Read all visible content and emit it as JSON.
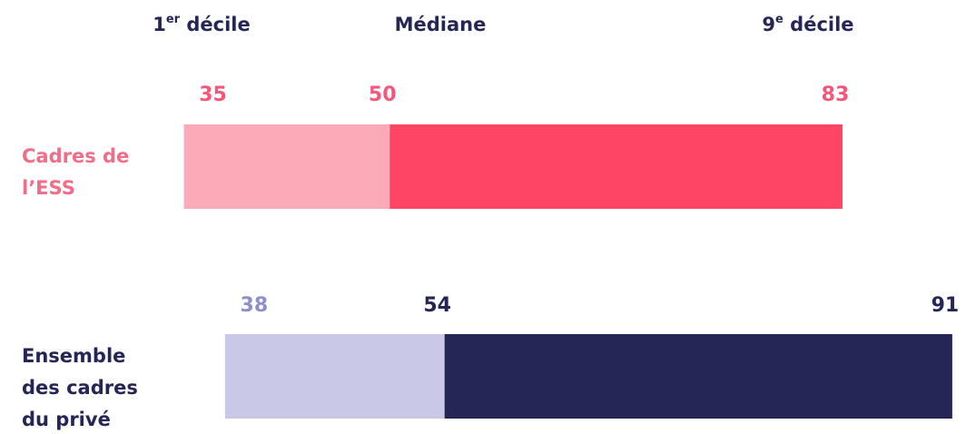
{
  "chart_data": {
    "type": "range-bar",
    "headers": [
      {
        "base": "1",
        "sup": "er",
        "rest": " décile"
      },
      {
        "base": "Médiane"
      },
      {
        "base": "9",
        "sup": "e",
        "rest": " décile"
      }
    ],
    "xlim": [
      21.6,
      92
    ],
    "series": [
      {
        "name": [
          "Cadres de",
          "l’ESS"
        ],
        "name_color": "#f26d87",
        "colors": [
          "#fdaab8",
          "#ff4566"
        ],
        "label_colors": [
          "#f5567a",
          "#f5567a",
          "#f5567a"
        ],
        "values": [
          35,
          50,
          83
        ]
      },
      {
        "name": [
          "Ensemble",
          "des cadres",
          "du privé"
        ],
        "name_color": "#262656",
        "colors": [
          "#c9c9e7",
          "#262656"
        ],
        "label_colors": [
          "#8e8ec9",
          "#262656",
          "#262656"
        ],
        "values": [
          38,
          54,
          91
        ]
      }
    ]
  }
}
